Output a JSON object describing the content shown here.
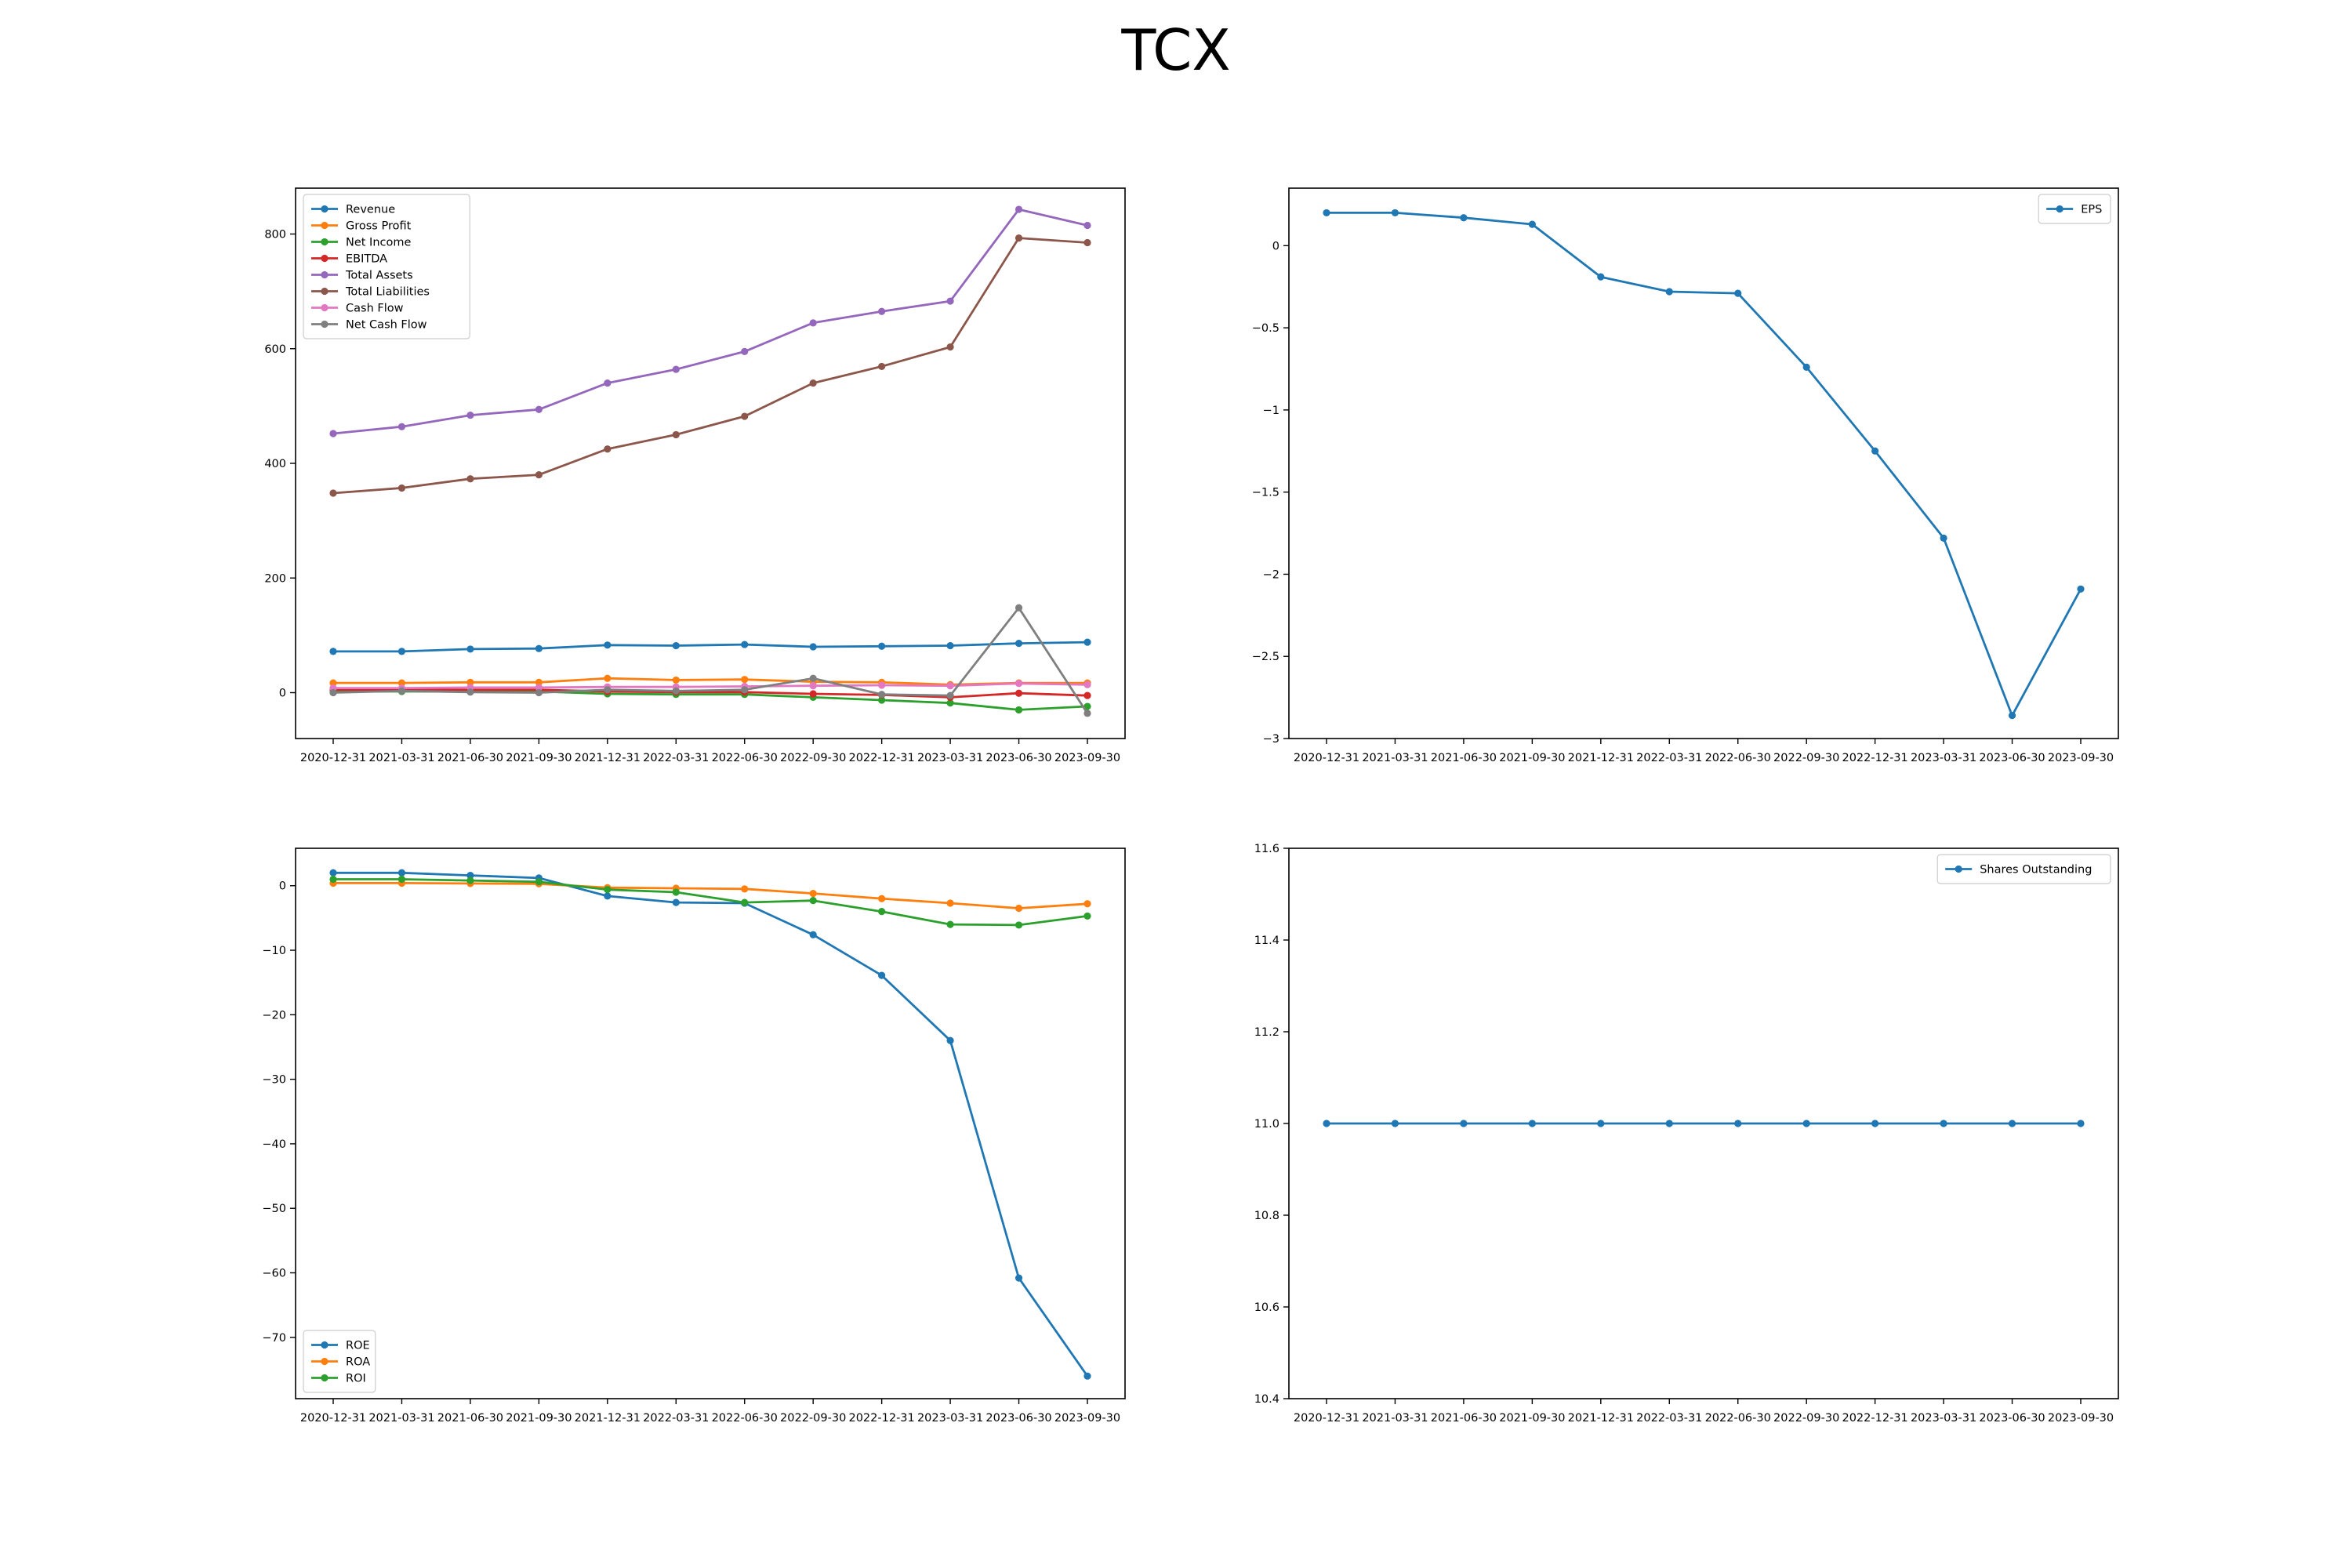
{
  "figure": {
    "title": "TCX"
  },
  "colors": {
    "C0": "#1f77b4",
    "C1": "#ff7f0e",
    "C2": "#2ca02c",
    "C3": "#d62728",
    "C4": "#9467bd",
    "C5": "#8c564b",
    "C6": "#e377c2",
    "C7": "#7f7f7f"
  },
  "chart_data": [
    {
      "type": "line",
      "x": [
        "2020-12-31",
        "2021-03-31",
        "2021-06-30",
        "2021-09-30",
        "2021-12-31",
        "2022-03-31",
        "2022-06-30",
        "2022-09-30",
        "2022-12-31",
        "2023-03-31",
        "2023-06-30",
        "2023-09-30"
      ],
      "ylim": [
        -80,
        880
      ],
      "yticks": [
        0,
        200,
        400,
        600,
        800
      ],
      "legend": "upper left",
      "series": [
        {
          "name": "Revenue",
          "color": "C0",
          "values": [
            72,
            72,
            76,
            77,
            83,
            82,
            84,
            80,
            81,
            82,
            86,
            88
          ]
        },
        {
          "name": "Gross Profit",
          "color": "C1",
          "values": [
            17,
            17,
            18,
            18,
            25,
            22,
            23,
            19,
            18,
            14,
            17,
            17
          ]
        },
        {
          "name": "Net Income",
          "color": "C2",
          "values": [
            2,
            2,
            2,
            2,
            -2,
            -3,
            -3,
            -8,
            -13,
            -18,
            -30,
            -24
          ]
        },
        {
          "name": "EBITDA",
          "color": "C3",
          "values": [
            5,
            5,
            5,
            5,
            2,
            1,
            1,
            -2,
            -4,
            -8,
            -1,
            -5
          ]
        },
        {
          "name": "Total Assets",
          "color": "C4",
          "values": [
            452,
            464,
            484,
            494,
            540,
            564,
            595,
            645,
            665,
            683,
            843,
            815
          ]
        },
        {
          "name": "Total Liabilities",
          "color": "C5",
          "values": [
            348,
            357,
            373,
            380,
            425,
            450,
            482,
            540,
            569,
            603,
            793,
            785
          ]
        },
        {
          "name": "Cash Flow",
          "color": "C6",
          "values": [
            8,
            8,
            9,
            9,
            10,
            10,
            11,
            12,
            13,
            12,
            16,
            14
          ]
        },
        {
          "name": "Net Cash Flow",
          "color": "C7",
          "values": [
            0,
            3,
            1,
            0,
            5,
            3,
            5,
            25,
            -3,
            -5,
            148,
            -36
          ]
        }
      ]
    },
    {
      "type": "line",
      "x": [
        "2020-12-31",
        "2021-03-31",
        "2021-06-30",
        "2021-09-30",
        "2021-12-31",
        "2022-03-31",
        "2022-06-30",
        "2022-09-30",
        "2022-12-31",
        "2023-03-31",
        "2023-06-30",
        "2023-09-30"
      ],
      "ylim": [
        -3.0,
        0.35
      ],
      "yticks": [
        0.0,
        -0.5,
        -1.0,
        -1.5,
        -2.0,
        -2.5,
        -3.0
      ],
      "legend": "upper right",
      "series": [
        {
          "name": "EPS",
          "color": "C0",
          "values": [
            0.2,
            0.2,
            0.17,
            0.13,
            -0.19,
            -0.28,
            -0.29,
            -0.74,
            -1.25,
            -1.78,
            -2.86,
            -2.09
          ]
        }
      ]
    },
    {
      "type": "line",
      "x": [
        "2020-12-31",
        "2021-03-31",
        "2021-06-30",
        "2021-09-30",
        "2021-12-31",
        "2022-03-31",
        "2022-06-30",
        "2022-09-30",
        "2022-12-31",
        "2023-03-31",
        "2023-06-30",
        "2023-09-30"
      ],
      "ylim": [
        -79.5,
        5.8
      ],
      "yticks": [
        0,
        -10,
        -20,
        -30,
        -40,
        -50,
        -60,
        -70
      ],
      "legend": "lower left",
      "series": [
        {
          "name": "ROE",
          "color": "C0",
          "values": [
            2.0,
            2.0,
            1.6,
            1.2,
            -1.6,
            -2.6,
            -2.7,
            -7.6,
            -13.9,
            -24.0,
            -60.8,
            -76.0
          ]
        },
        {
          "name": "ROA",
          "color": "C1",
          "values": [
            0.4,
            0.4,
            0.35,
            0.3,
            -0.3,
            -0.4,
            -0.5,
            -1.2,
            -2.0,
            -2.7,
            -3.5,
            -2.8
          ]
        },
        {
          "name": "ROI",
          "color": "C2",
          "values": [
            1.0,
            1.0,
            0.8,
            0.6,
            -0.6,
            -1.0,
            -2.6,
            -2.3,
            -4.0,
            -6.0,
            -6.1,
            -4.7
          ]
        }
      ]
    },
    {
      "type": "line",
      "x": [
        "2020-12-31",
        "2021-03-31",
        "2021-06-30",
        "2021-09-30",
        "2021-12-31",
        "2022-03-31",
        "2022-06-30",
        "2022-09-30",
        "2022-12-31",
        "2023-03-31",
        "2023-06-30",
        "2023-09-30"
      ],
      "ylim": [
        10.4,
        11.6
      ],
      "yticks": [
        "10.4",
        "10.6",
        "10.8",
        "11.0",
        "11.2",
        "11.4",
        "11.6"
      ],
      "legend": "upper right",
      "series": [
        {
          "name": "Shares Outstanding",
          "color": "C0",
          "values": [
            11.0,
            11.0,
            11.0,
            11.0,
            11.0,
            11.0,
            11.0,
            11.0,
            11.0,
            11.0,
            11.0,
            11.0
          ]
        }
      ]
    }
  ]
}
